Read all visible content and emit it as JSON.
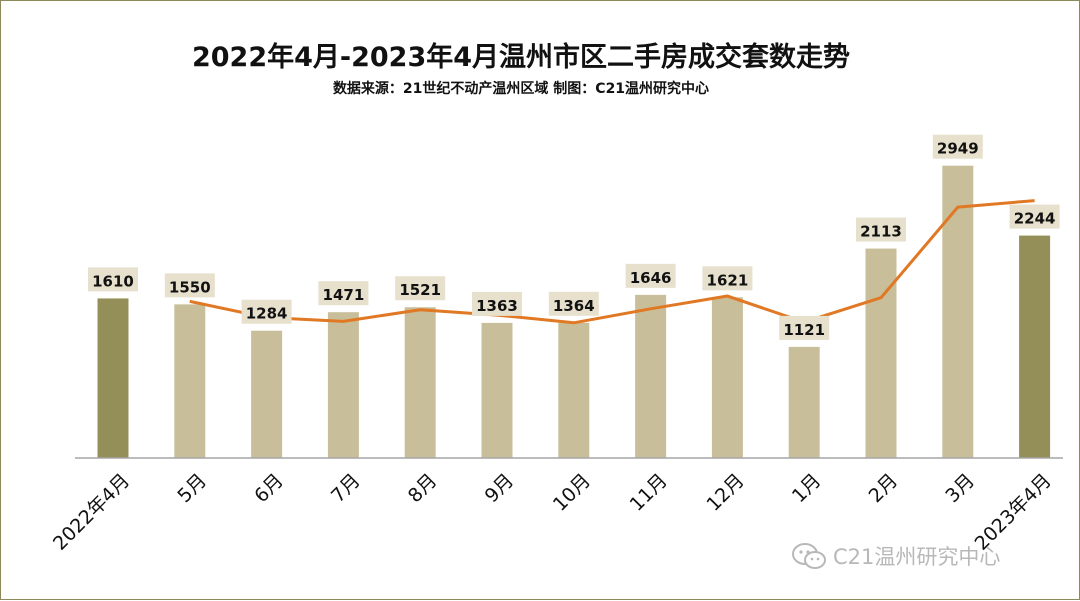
{
  "title": "2022年4月-2023年4月温州市区二手房成交套数走势",
  "subtitle": "数据来源：21世纪不动产温州区域  制图：C21温州研究中心",
  "watermark": "C21温州研究中心",
  "colors": {
    "bar_highlight": "#948f58",
    "bar_normal": "#c8bf9a",
    "line": "#e07824",
    "label_bg": "#e6e0cc",
    "axis": "#a6a6a6"
  },
  "chart_data": {
    "type": "bar",
    "categories": [
      "2022年4月",
      "5月",
      "6月",
      "7月",
      "8月",
      "9月",
      "10月",
      "11月",
      "12月",
      "1月",
      "2月",
      "3月",
      "2023年4月"
    ],
    "values": [
      1610,
      1550,
      1284,
      1471,
      1521,
      1363,
      1364,
      1646,
      1621,
      1121,
      2113,
      2949,
      2244
    ],
    "highlighted": [
      "2022年4月",
      "2023年4月"
    ],
    "trend_line": {
      "type": "line",
      "description": "moving average",
      "x": [
        "5月",
        "6月",
        "7月",
        "8月",
        "9月",
        "10月",
        "11月",
        "12月",
        "1月",
        "2月",
        "3月",
        "2023年4月"
      ],
      "values": [
        1580,
        1417,
        1378,
        1496,
        1442,
        1364,
        1505,
        1634,
        1371,
        1617,
        2531,
        2597
      ]
    },
    "ylim": [
      0,
      3400
    ],
    "grid": false,
    "legend": "none"
  }
}
